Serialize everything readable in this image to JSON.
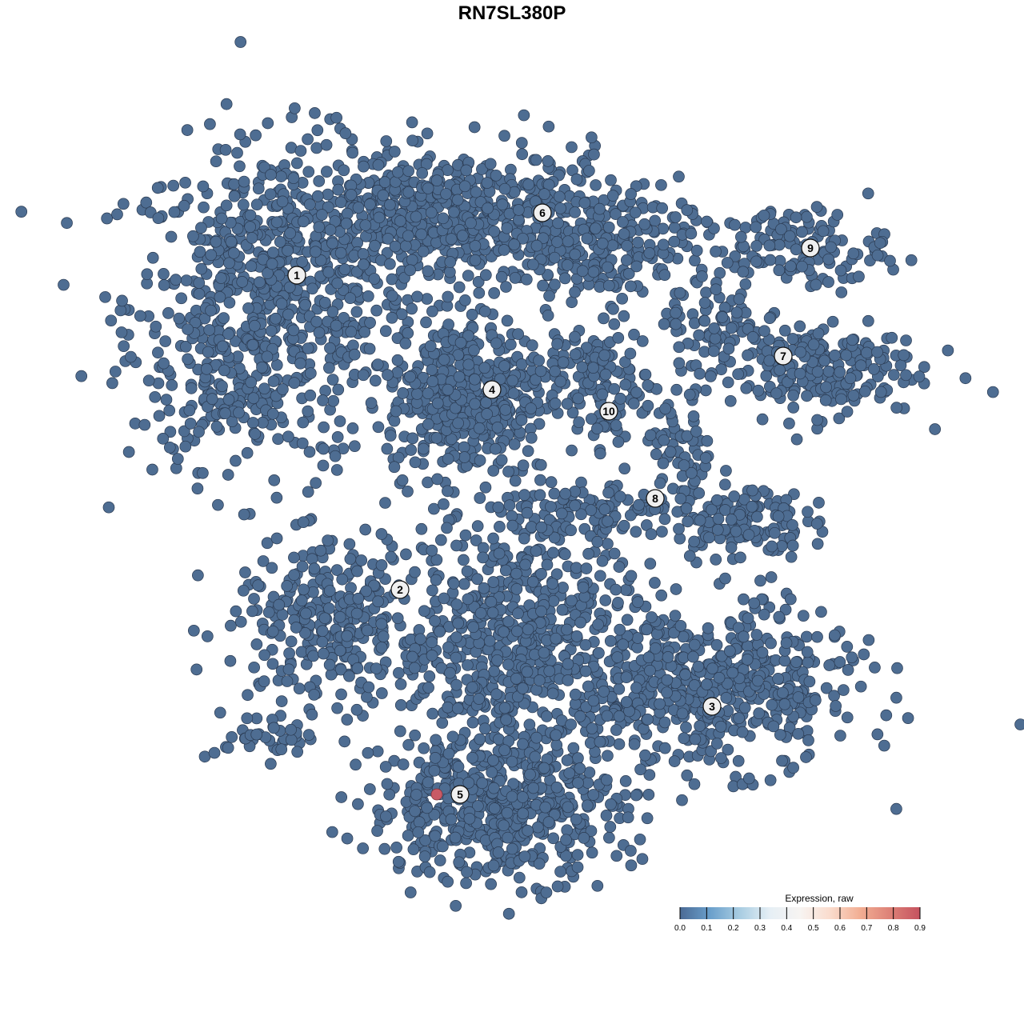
{
  "chart_data": {
    "type": "scatter",
    "title": "RN7SL380P",
    "xlabel": "",
    "ylabel": "",
    "grid": false,
    "axes_visible": false,
    "point_color_default": "#4e6d92",
    "point_outline_color": "#2b3b52",
    "clusters": [
      {
        "label": "1",
        "label_pos": [
          -26.9,
          29.6
        ],
        "blobs": [
          {
            "center": [
              -30,
              26
            ],
            "sd": [
              9,
              10
            ],
            "n": 650
          },
          {
            "center": [
              -36,
              18
            ],
            "sd": [
              4,
              6
            ],
            "n": 80
          }
        ]
      },
      {
        "label": "6",
        "label_pos": [
          3.8,
          37.4
        ],
        "blobs": [
          {
            "center": [
              -8,
              36.5
            ],
            "sd": [
              11,
              4.5
            ],
            "n": 650
          },
          {
            "center": [
              12,
              33.5
            ],
            "sd": [
              5,
              3.5
            ],
            "n": 160
          }
        ]
      },
      {
        "label": "4",
        "label_pos": [
          -2.5,
          15.3
        ],
        "blobs": [
          {
            "center": [
              -5.5,
              14.5
            ],
            "sd": [
              5,
              5
            ],
            "n": 420
          }
        ]
      },
      {
        "label": "9",
        "label_pos": [
          37.3,
          33
        ],
        "blobs": [
          {
            "center": [
              35,
              33
            ],
            "sd": [
              6,
              2.5
            ],
            "n": 130
          }
        ]
      },
      {
        "label": "7",
        "label_pos": [
          33.9,
          19.5
        ],
        "blobs": [
          {
            "center": [
              37,
              18
            ],
            "sd": [
              7,
              3
            ],
            "n": 220
          },
          {
            "center": [
              25,
              24
            ],
            "sd": [
              3,
              3
            ],
            "n": 70
          }
        ]
      },
      {
        "label": "10",
        "label_pos": [
          12.1,
          12.6
        ],
        "blobs": [
          {
            "center": [
              12,
              15.5
            ],
            "sd": [
              3,
              4
            ],
            "n": 90
          },
          {
            "center": [
              8,
              19
            ],
            "sd": [
              5,
              1.5
            ],
            "n": 50
          }
        ]
      },
      {
        "label": "8",
        "label_pos": [
          17.9,
          1.7
        ],
        "blobs": [
          {
            "center": [
              28.5,
              -1
            ],
            "sd": [
              4,
              2.5
            ],
            "n": 130
          },
          {
            "center": [
              21,
              7
            ],
            "sd": [
              2,
              4
            ],
            "n": 70
          },
          {
            "center": [
              10,
              0
            ],
            "sd": [
              5,
              2
            ],
            "n": 90
          }
        ]
      },
      {
        "label": "2",
        "label_pos": [
          -14,
          -9.7
        ],
        "blobs": [
          {
            "center": [
              -23,
              -14
            ],
            "sd": [
              6,
              5
            ],
            "n": 280
          },
          {
            "center": [
              -30,
              -28
            ],
            "sd": [
              4,
              1.5
            ],
            "n": 40
          }
        ]
      },
      {
        "label": "3",
        "label_pos": [
          25,
          -24.3
        ],
        "blobs": [
          {
            "center": [
              25,
              -22
            ],
            "sd": [
              9,
              5
            ],
            "n": 520
          }
        ]
      },
      {
        "label": "5",
        "label_pos": [
          -6.5,
          -35.3
        ],
        "blobs": [
          {
            "center": [
              -2,
              -37
            ],
            "sd": [
              8,
              4.5
            ],
            "n": 520
          }
        ]
      },
      {
        "label": "",
        "label_pos": null,
        "blobs": [
          {
            "center": [
              1,
              -16
            ],
            "sd": [
              8,
              8
            ],
            "n": 650
          }
        ]
      }
    ],
    "highlighted_points": [
      {
        "x": -9.4,
        "y": -35.3,
        "value": 0.9,
        "color": "#c85a66"
      }
    ],
    "color_scale": {
      "title": "Expression, raw",
      "min": 0.0,
      "max": 0.9,
      "ticks": [
        "0.0",
        "0.1",
        "0.2",
        "0.3",
        "0.4",
        "0.5",
        "0.6",
        "0.7",
        "0.8",
        "0.9"
      ],
      "colors": [
        "#4a6a95",
        "#6a9fcb",
        "#a9cde2",
        "#e6eff5",
        "#f7f4f2",
        "#fadccd",
        "#f2ae93",
        "#dd8177",
        "#c5525f"
      ]
    }
  }
}
